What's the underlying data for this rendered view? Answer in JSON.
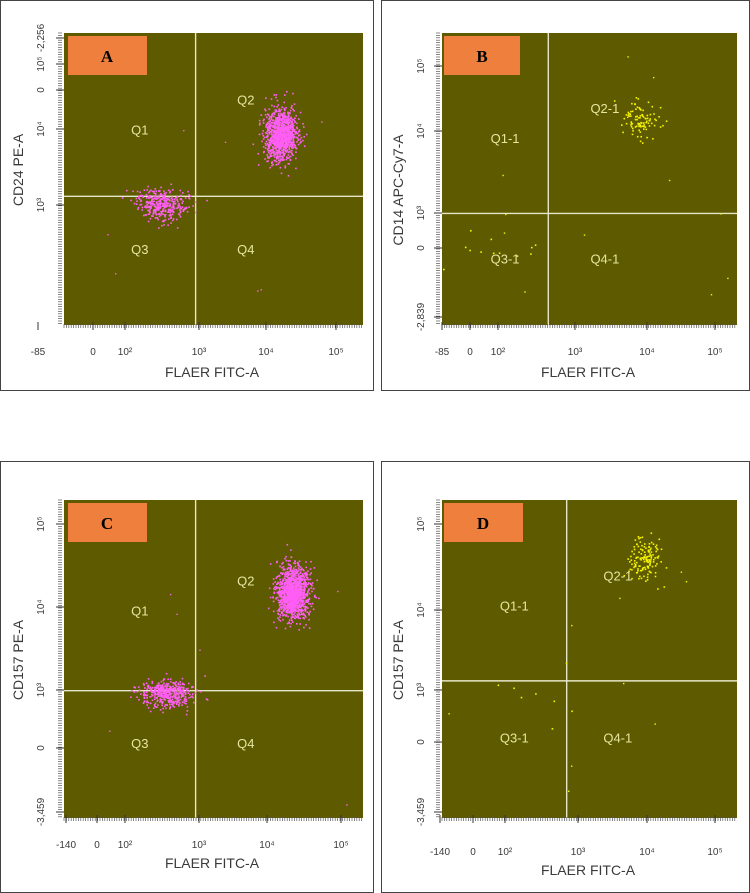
{
  "colors": {
    "plot_background": "#5e5a00",
    "gate_line": "#e6e6c8",
    "quadrant_label": "#e6e6a0",
    "label_box": "#ee7f3c",
    "label_text": "#000000",
    "pink_events": "#ff5ef5",
    "yellow_events": "#f5f500"
  },
  "chart_data": [
    {
      "type": "scatter",
      "panel_label": "A",
      "xlabel": "FLAER FITC-A",
      "ylabel": "CD24 PE-A",
      "xscale": "biexponential",
      "yscale": "biexponential",
      "x_ticks": [
        "-85",
        "0",
        "10²",
        "10³",
        "10⁴",
        "10⁵"
      ],
      "y_ticks": [
        "-2,256",
        "0",
        "10³",
        "10⁴",
        "10⁵"
      ],
      "gate": {
        "x": 900,
        "y": 1300
      },
      "quadrants": [
        "Q1",
        "Q2",
        "Q3",
        "Q4"
      ],
      "point_color": "pink",
      "populations": [
        {
          "name": "Q2",
          "center_x": 16000,
          "center_y": 8500,
          "approx_events": 1100
        },
        {
          "name": "Q3",
          "center_x": 300,
          "center_y": 750,
          "approx_events": 380
        }
      ]
    },
    {
      "type": "scatter",
      "panel_label": "B",
      "xlabel": "FLAER FITC-A",
      "ylabel": "CD14 APC-Cy7-A",
      "xscale": "biexponential",
      "yscale": "biexponential",
      "x_ticks": [
        "-85",
        "0",
        "10²",
        "10³",
        "10⁴",
        "10⁵"
      ],
      "y_ticks": [
        "-2,839",
        "0",
        "10³",
        "10⁴",
        "10⁵"
      ],
      "gate": {
        "x": 450,
        "y": 700
      },
      "quadrants": [
        "Q1-1",
        "Q2-1",
        "Q3-1",
        "Q4-1"
      ],
      "point_color": "yellow",
      "populations": [
        {
          "name": "Q2-1",
          "center_x": 8000,
          "center_y": 15000,
          "approx_events": 95
        },
        {
          "name": "Q3-1",
          "center_x": 100,
          "center_y": 0,
          "approx_events": 12
        }
      ]
    },
    {
      "type": "scatter",
      "panel_label": "C",
      "xlabel": "FLAER FITC-A",
      "ylabel": "CD157 PE-A",
      "xscale": "biexponential",
      "yscale": "biexponential",
      "x_ticks": [
        "-140",
        "0",
        "10²",
        "10³",
        "10⁴",
        "10⁵"
      ],
      "y_ticks": [
        "-3,459",
        "0",
        "10³",
        "10⁴",
        "10⁵"
      ],
      "gate": {
        "x": 900,
        "y": 700
      },
      "quadrants": [
        "Q1",
        "Q2",
        "Q3",
        "Q4"
      ],
      "point_color": "pink",
      "populations": [
        {
          "name": "Q2",
          "center_x": 22000,
          "center_y": 15000,
          "approx_events": 1300
        },
        {
          "name": "Q3",
          "center_x": 350,
          "center_y": 300,
          "approx_events": 450
        }
      ]
    },
    {
      "type": "scatter",
      "panel_label": "D",
      "xlabel": "FLAER FITC-A",
      "ylabel": "CD157 PE-A",
      "xscale": "biexponential",
      "yscale": "biexponential",
      "x_ticks": [
        "-140",
        "0",
        "10²",
        "10³",
        "10⁴",
        "10⁵"
      ],
      "y_ticks": [
        "-3,459",
        "0",
        "10³",
        "10⁴",
        "10⁵"
      ],
      "gate": {
        "x": 700,
        "y": 1300
      },
      "quadrants": [
        "Q1-1",
        "Q2-1",
        "Q3-1",
        "Q4-1"
      ],
      "point_color": "yellow",
      "populations": [
        {
          "name": "Q2-1",
          "center_x": 9000,
          "center_y": 40000,
          "approx_events": 140
        },
        {
          "name": "Q3-1",
          "center_x": 200,
          "center_y": 100,
          "approx_events": 8
        }
      ]
    }
  ]
}
